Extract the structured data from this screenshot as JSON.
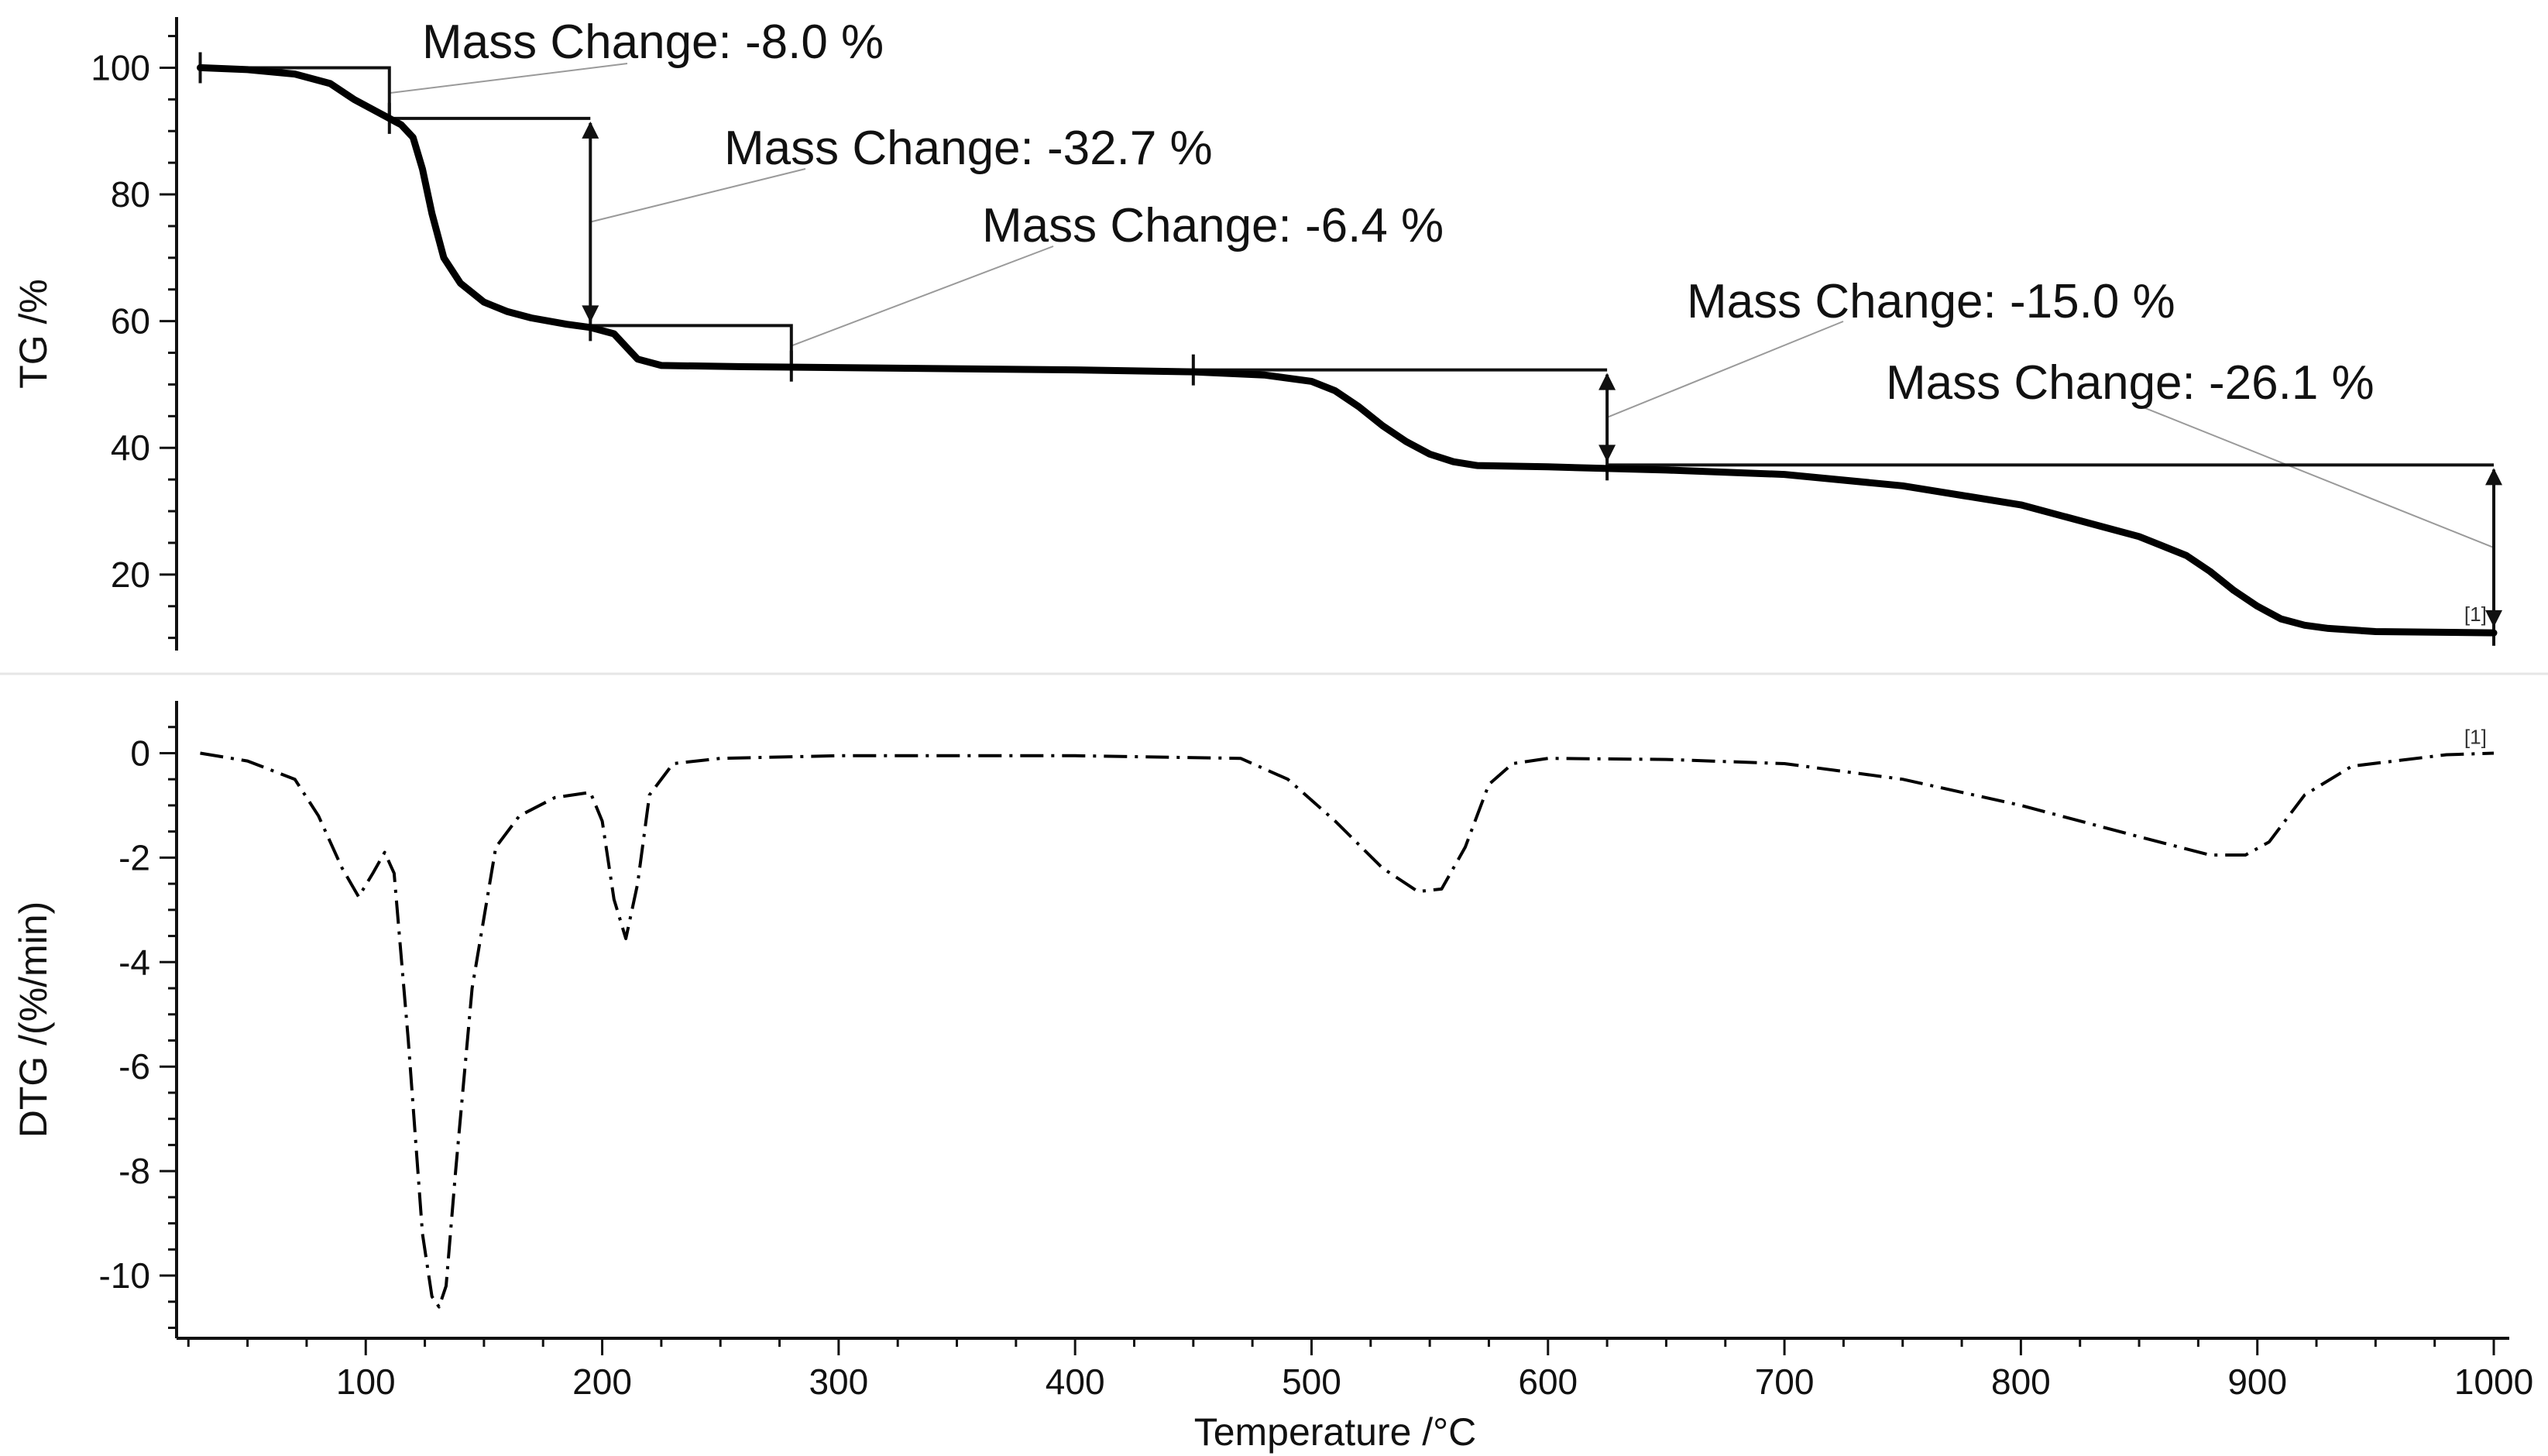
{
  "chart_data": [
    {
      "panel": "tg",
      "type": "line",
      "ylabel": "TG /%",
      "xlim": [
        20,
        1000
      ],
      "ylim": [
        8,
        108
      ],
      "yticks": [
        20,
        40,
        60,
        80,
        100
      ],
      "series": [
        {
          "name": "TG",
          "x": [
            30,
            50,
            70,
            85,
            95,
            105,
            110,
            115,
            120,
            124,
            128,
            133,
            140,
            150,
            160,
            170,
            185,
            195,
            205,
            210,
            215,
            225,
            260,
            320,
            400,
            450,
            480,
            500,
            510,
            520,
            530,
            540,
            550,
            560,
            570,
            600,
            650,
            700,
            750,
            800,
            850,
            870,
            880,
            890,
            900,
            910,
            920,
            930,
            950,
            1000
          ],
          "y": [
            100,
            99.7,
            99,
            97.5,
            95,
            93,
            92,
            91,
            89,
            84,
            77,
            70,
            66,
            63,
            61.5,
            60.5,
            59.5,
            59,
            58,
            56,
            54,
            53,
            52.8,
            52.6,
            52.3,
            52,
            51.5,
            50.5,
            49,
            46.5,
            43.5,
            41,
            39,
            37.8,
            37.2,
            37,
            36.5,
            35.8,
            34,
            31,
            26,
            23,
            20.5,
            17.5,
            15,
            13,
            12,
            11.5,
            11,
            10.8
          ]
        }
      ],
      "step_markers": [
        {
          "label": "Mass Change: -8.0 %",
          "from_x": 30,
          "to_x": 110,
          "from_y": 100,
          "to_y": 92
        },
        {
          "label": "Mass Change: -32.7 %",
          "from_x": 110,
          "to_x": 195,
          "from_y": 92,
          "to_y": 59.3
        },
        {
          "label": "Mass Change: -6.4 %",
          "from_x": 195,
          "to_x": 280,
          "from_y": 59.3,
          "to_y": 52.9
        },
        {
          "label": "Mass Change: -15.0 %",
          "from_x": 450,
          "to_x": 625,
          "from_y": 52.3,
          "to_y": 37.3
        },
        {
          "label": "Mass Change: -26.1 %",
          "from_x": 625,
          "to_x": 1000,
          "from_y": 37.3,
          "to_y": 11.2
        }
      ],
      "end_tag": "[1]"
    },
    {
      "panel": "dtg",
      "type": "line",
      "xlabel": "Temperature /°C",
      "ylabel": "DTG /(%/min)",
      "xlim": [
        20,
        1000
      ],
      "ylim": [
        -11.2,
        1.0
      ],
      "yticks": [
        0,
        -2,
        -4,
        -6,
        -8,
        -10
      ],
      "xticks": [
        100,
        200,
        300,
        400,
        500,
        600,
        700,
        800,
        900,
        1000
      ],
      "series": [
        {
          "name": "DTG",
          "x": [
            30,
            50,
            70,
            80,
            90,
            97,
            103,
            108,
            112,
            118,
            124,
            128,
            131,
            134,
            138,
            145,
            155,
            165,
            180,
            195,
            200,
            205,
            210,
            215,
            220,
            230,
            250,
            300,
            400,
            470,
            490,
            510,
            530,
            545,
            555,
            565,
            575,
            585,
            600,
            650,
            700,
            750,
            800,
            850,
            880,
            895,
            905,
            920,
            940,
            980,
            1000
          ],
          "y": [
            0,
            -0.15,
            -0.5,
            -1.2,
            -2.2,
            -2.75,
            -2.3,
            -1.9,
            -2.3,
            -5.5,
            -9.2,
            -10.4,
            -10.6,
            -10.2,
            -8.0,
            -4.5,
            -1.8,
            -1.2,
            -0.85,
            -0.75,
            -1.3,
            -2.8,
            -3.55,
            -2.5,
            -0.8,
            -0.2,
            -0.1,
            -0.05,
            -0.05,
            -0.1,
            -0.5,
            -1.3,
            -2.2,
            -2.65,
            -2.6,
            -1.8,
            -0.6,
            -0.2,
            -0.1,
            -0.12,
            -0.2,
            -0.5,
            -1.0,
            -1.6,
            -1.95,
            -1.95,
            -1.7,
            -0.8,
            -0.25,
            -0.03,
            0
          ]
        }
      ],
      "end_tag": "[1]"
    }
  ]
}
